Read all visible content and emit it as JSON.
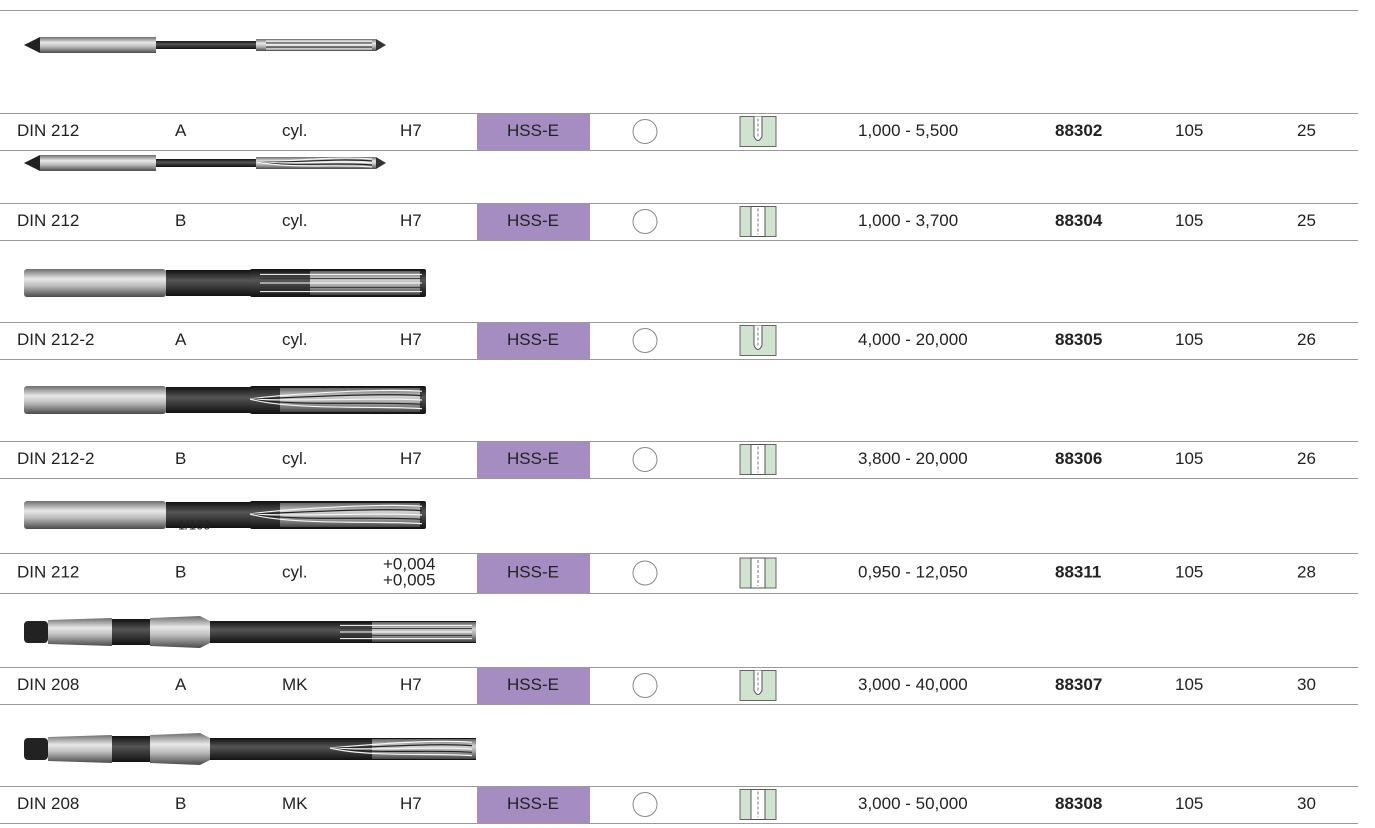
{
  "annotation": "1/100",
  "rows": [
    {
      "standard": "DIN 212",
      "form": "A",
      "shank": "cyl.",
      "tolerance": [
        "H7"
      ],
      "material": "HSS-E",
      "range": "1,000 - 5,500",
      "article": "88302",
      "group": "105",
      "page": "25"
    },
    {
      "standard": "DIN 212",
      "form": "B",
      "shank": "cyl.",
      "tolerance": [
        "H7"
      ],
      "material": "HSS-E",
      "range": "1,000 - 3,700",
      "article": "88304",
      "group": "105",
      "page": "25"
    },
    {
      "standard": "DIN 212-2",
      "form": "A",
      "shank": "cyl.",
      "tolerance": [
        "H7"
      ],
      "material": "HSS-E",
      "range": "4,000 - 20,000",
      "article": "88305",
      "group": "105",
      "page": "26"
    },
    {
      "standard": "DIN 212-2",
      "form": "B",
      "shank": "cyl.",
      "tolerance": [
        "H7"
      ],
      "material": "HSS-E",
      "range": "3,800 - 20,000",
      "article": "88306",
      "group": "105",
      "page": "26"
    },
    {
      "standard": "DIN 212",
      "form": "B",
      "shank": "cyl.",
      "tolerance": [
        "+0,004",
        "+0,005"
      ],
      "material": "HSS-E",
      "range": "0,950 - 12,050",
      "article": "88311",
      "group": "105",
      "page": "28"
    },
    {
      "standard": "DIN 208",
      "form": "A",
      "shank": "MK",
      "tolerance": [
        "H7"
      ],
      "material": "HSS-E",
      "range": "3,000 - 40,000",
      "article": "88307",
      "group": "105",
      "page": "30"
    },
    {
      "standard": "DIN 208",
      "form": "B",
      "shank": "MK",
      "tolerance": [
        "H7"
      ],
      "material": "HSS-E",
      "range": "3,000 - 50,000",
      "article": "88308",
      "group": "105",
      "page": "30"
    }
  ]
}
